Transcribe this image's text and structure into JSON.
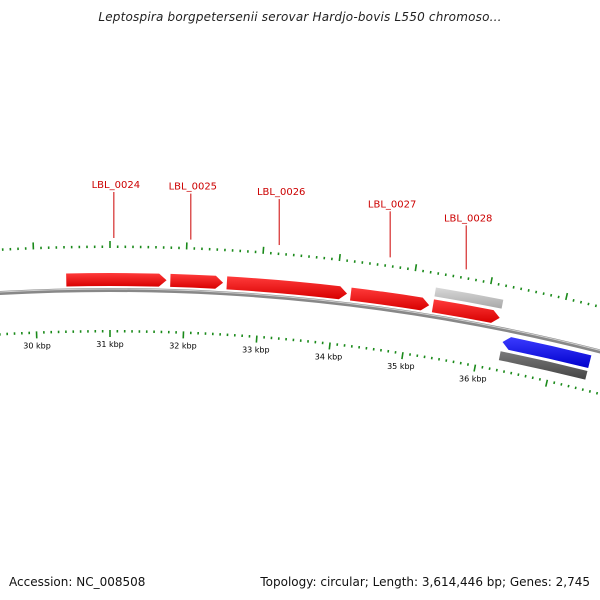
{
  "title": "Leptospira borgpetersenii serovar Hardjo-bovis L550 chromoso...",
  "footer": {
    "accession": "Accession: NC_008508",
    "summary": "Topology: circular; Length: 3,614,446 bp; Genes: 2,745"
  },
  "colors": {
    "forward_gene": "#ff0000",
    "reverse_gene": "#0000ff",
    "pseudo_gene": "#bbbbbb",
    "tick": "#1a8a1a",
    "label": "#cc0000",
    "backbone": "#888888"
  },
  "genes": [
    {
      "label": "LBL_0024",
      "start_kbp": 30.42,
      "end_kbp": 31.75,
      "strand": "forward",
      "type": "gene"
    },
    {
      "label": "LBL_0025",
      "start_kbp": 31.8,
      "end_kbp": 32.5,
      "strand": "forward",
      "type": "gene"
    },
    {
      "label": "LBL_0026",
      "start_kbp": 32.55,
      "end_kbp": 34.15,
      "strand": "forward",
      "type": "gene"
    },
    {
      "label": "LBL_0027",
      "start_kbp": 34.2,
      "end_kbp": 35.25,
      "strand": "forward",
      "type": "gene"
    },
    {
      "label": "",
      "start_kbp": 35.3,
      "end_kbp": 36.2,
      "strand": "forward",
      "type": "gene"
    },
    {
      "label": "LBL_0028",
      "start_kbp": 35.3,
      "end_kbp": 36.2,
      "strand": "forward",
      "type": "pseudo"
    },
    {
      "label": "",
      "start_kbp": 36.3,
      "end_kbp": 37.5,
      "strand": "reverse",
      "type": "gene"
    },
    {
      "label": "",
      "start_kbp": 36.3,
      "end_kbp": 37.5,
      "strand": "reverse",
      "type": "pseudo"
    }
  ],
  "gene_label_anchor_kbp": [
    31.05,
    32.05,
    33.2,
    34.65,
    35.65
  ],
  "kbp_labels": [
    "30 kbp",
    "31 kbp",
    "32 kbp",
    "33 kbp",
    "34 kbp",
    "35 kbp",
    "36 kbp"
  ],
  "kbp_values": [
    30,
    31,
    32,
    33,
    34,
    35,
    36
  ]
}
